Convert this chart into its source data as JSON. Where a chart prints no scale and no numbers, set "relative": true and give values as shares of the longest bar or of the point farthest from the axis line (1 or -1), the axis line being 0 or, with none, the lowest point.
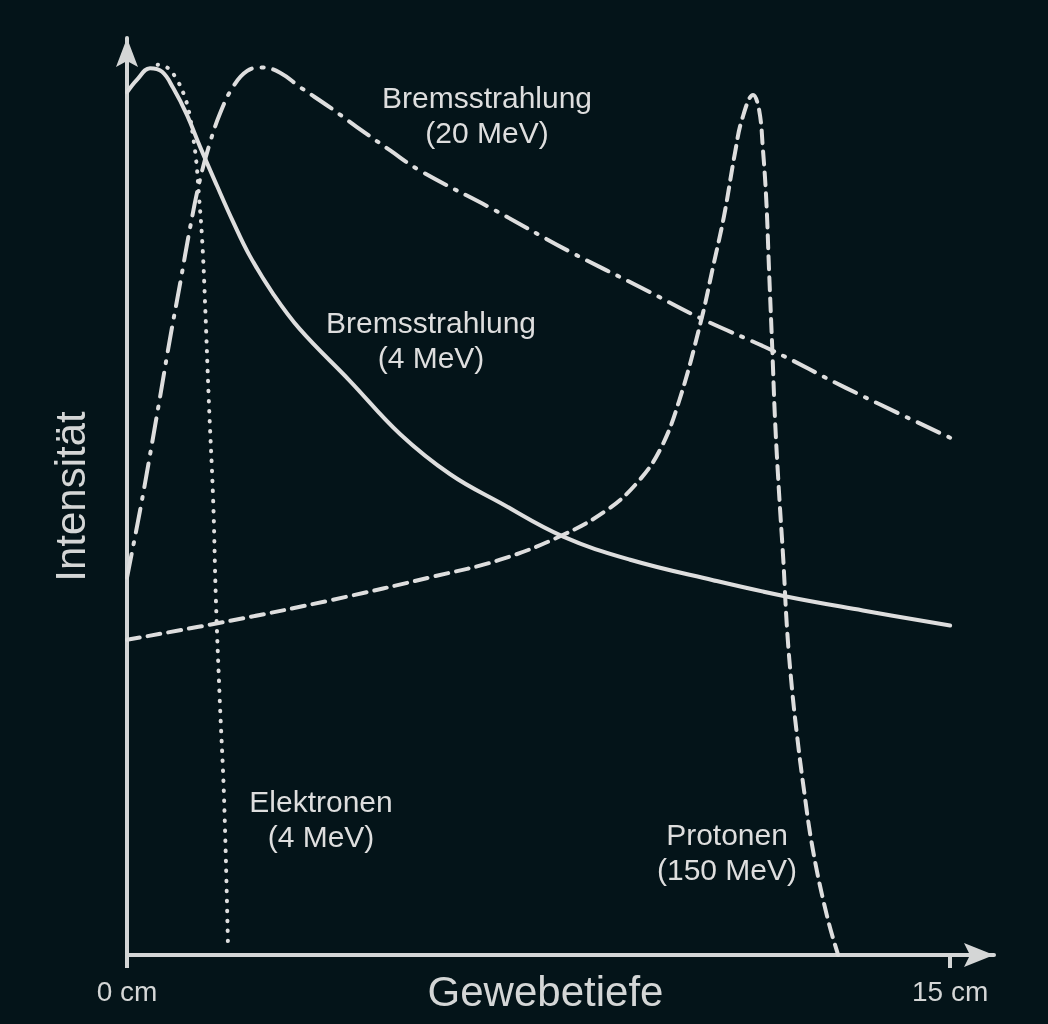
{
  "chart_data": {
    "type": "line",
    "relative": true,
    "xlabel": "Gewebetiefe",
    "ylabel": "Intensität",
    "xlim": [
      0,
      15.8
    ],
    "xticks": [
      {
        "value": 0,
        "label": "0 cm"
      },
      {
        "value": 15,
        "label": "15 cm"
      }
    ],
    "series": [
      {
        "name": "Bremsstrahlung\n(20 MeV)",
        "color": "#dedede",
        "line_style": "dashdot",
        "x": [
          0,
          0.24,
          0.42,
          0.6,
          0.78,
          0.97,
          1.15,
          1.33,
          1.51,
          1.7,
          1.93,
          2.19,
          2.46,
          2.79,
          3.15,
          3.7,
          4.19,
          4.79,
          5.34,
          6.69,
          8.04,
          9.39,
          10.46,
          11.76,
          13.1,
          15
        ],
        "values": [
          0.424,
          0.5,
          0.562,
          0.626,
          0.691,
          0.755,
          0.817,
          0.871,
          0.912,
          0.946,
          0.975,
          0.993,
          0.997,
          0.991,
          0.975,
          0.952,
          0.93,
          0.904,
          0.881,
          0.837,
          0.791,
          0.749,
          0.715,
          0.679,
          0.637,
          0.581
        ]
      },
      {
        "name": "Bremsstrahlung\n(4 MeV)",
        "color": "#dedede",
        "line_style": "solid",
        "x": [
          0,
          0.18,
          0.42,
          0.64,
          0.84,
          1.09,
          1.33,
          1.64,
          1.93,
          2.24,
          2.66,
          3.15,
          4.06,
          4.98,
          5.89,
          6.8,
          7.95,
          9.17,
          10.68,
          11.99,
          13.41,
          15
        ],
        "values": [
          0.969,
          0.983,
          0.996,
          0.992,
          0.974,
          0.944,
          0.908,
          0.864,
          0.824,
          0.785,
          0.743,
          0.703,
          0.645,
          0.585,
          0.54,
          0.508,
          0.47,
          0.444,
          0.421,
          0.403,
          0.387,
          0.37
        ]
      },
      {
        "name": "Elektronen\n(4 MeV)",
        "color": "#dedede",
        "line_style": "dotted",
        "x": [
          0.56,
          0.75,
          0.91,
          1.04,
          1.13,
          1.2,
          1.26,
          1.31,
          1.37,
          1.42,
          1.49,
          1.57,
          1.62,
          1.69,
          1.77,
          1.84
        ],
        "values": [
          1,
          0.996,
          0.983,
          0.966,
          0.947,
          0.921,
          0.893,
          0.854,
          0.803,
          0.736,
          0.624,
          0.511,
          0.399,
          0.287,
          0.174,
          0.011
        ]
      },
      {
        "name": "Protonen\n(150 MeV)",
        "color": "#dedede",
        "line_style": "dashed",
        "x": [
          0,
          1.93,
          3.75,
          5.58,
          6.8,
          7.95,
          8.75,
          9.29,
          9.71,
          10.06,
          10.46,
          10.68,
          10.88,
          11.08,
          11.21,
          11.41,
          11.52,
          11.59,
          11.65,
          11.7,
          11.76,
          11.81,
          11.88,
          11.96,
          12.03,
          12.12,
          12.21,
          12.32,
          12.5,
          12.76,
          12.96
        ],
        "values": [
          0.354,
          0.376,
          0.399,
          0.425,
          0.444,
          0.472,
          0.5,
          0.53,
          0.567,
          0.622,
          0.712,
          0.773,
          0.83,
          0.901,
          0.939,
          0.966,
          0.949,
          0.904,
          0.848,
          0.77,
          0.68,
          0.601,
          0.522,
          0.444,
          0.365,
          0.298,
          0.247,
          0.193,
          0.118,
          0.043,
          0
        ]
      }
    ]
  }
}
